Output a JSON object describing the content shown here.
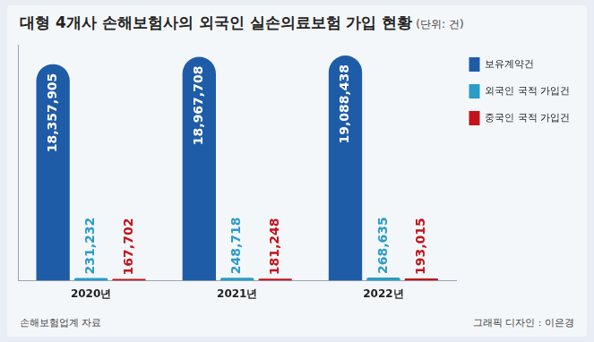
{
  "chart_data": {
    "type": "bar",
    "title": "대형 4개사 손해보험사의 외국인 실손의료보험 가입 현황",
    "subtitle": "(단위: 건)",
    "categories": [
      "2020년",
      "2021년",
      "2022년"
    ],
    "series": [
      {
        "name": "보유계약건",
        "color": "#1f5ca8",
        "values": [
          18357905,
          18967708,
          19088438
        ],
        "value_labels": [
          "18,357,905",
          "18,967,708",
          "19,088,438"
        ]
      },
      {
        "name": "외국인 국적 가입건",
        "color": "#2a9cc8",
        "values": [
          231232,
          248718,
          268635
        ],
        "value_labels": [
          "231,232",
          "248,718",
          "268,635"
        ]
      },
      {
        "name": "중국인 국적 가입건",
        "color": "#c3141c",
        "values": [
          167702,
          181248,
          193015
        ],
        "value_labels": [
          "167,702",
          "181,248",
          "193,015"
        ]
      }
    ],
    "ylim": [
      0,
      20000000
    ],
    "grid": false,
    "legend": "right",
    "data_labels": true,
    "tick_labels": "x",
    "annotations": [
      "손해보험업계 자료",
      "그래픽 디자인 : 이은경"
    ]
  }
}
